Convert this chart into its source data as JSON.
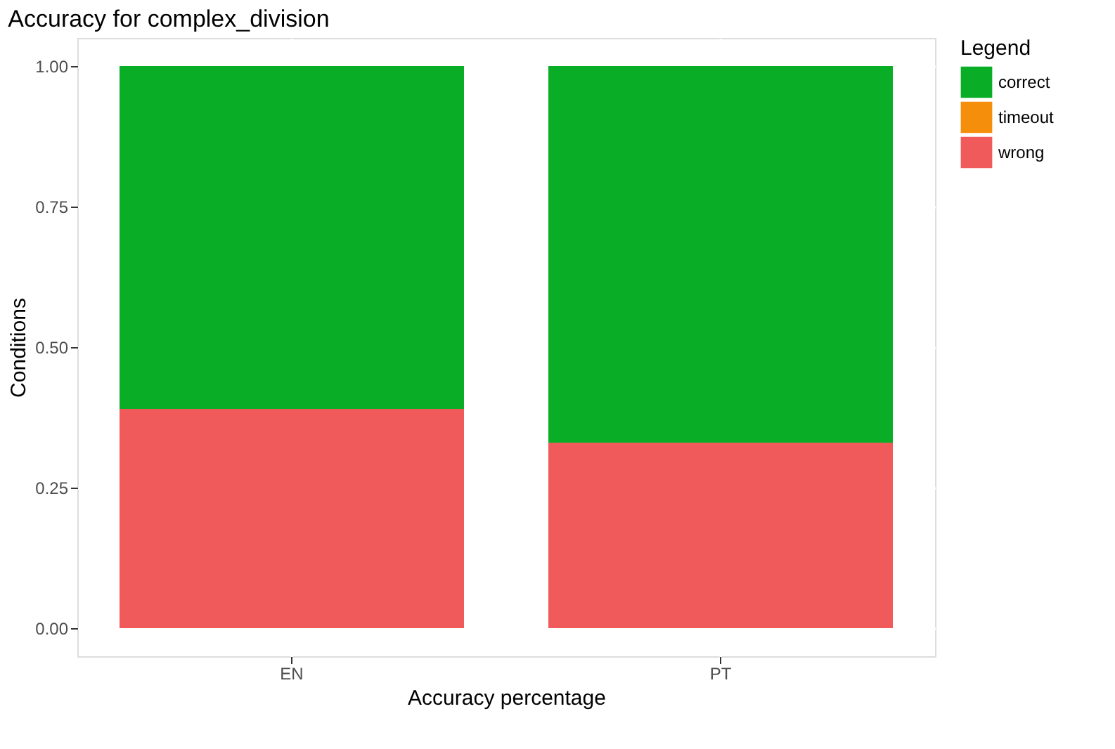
{
  "chart_data": {
    "type": "bar",
    "title": "Accuracy for complex_division",
    "xlabel": "Accuracy percentage",
    "ylabel": "Conditions",
    "legend_title": "Legend",
    "categories": [
      "EN",
      "PT"
    ],
    "stacked": true,
    "series": [
      {
        "name": "wrong",
        "color": "#f05a5a",
        "values": [
          0.39,
          0.33
        ]
      },
      {
        "name": "timeout",
        "color": "#f58e0b",
        "values": [
          0,
          0
        ]
      },
      {
        "name": "correct",
        "color": "#0aae26",
        "values": [
          0.61,
          0.67
        ]
      }
    ],
    "ylim": [
      -0.05,
      1.05
    ],
    "yticks": [
      {
        "value": 0,
        "label": "0.00"
      },
      {
        "value": 0.25,
        "label": "0.25"
      },
      {
        "value": 0.5,
        "label": "0.50"
      },
      {
        "value": 0.75,
        "label": "0.75"
      },
      {
        "value": 1,
        "label": "1.00"
      }
    ],
    "grid": true,
    "legend": "right"
  }
}
